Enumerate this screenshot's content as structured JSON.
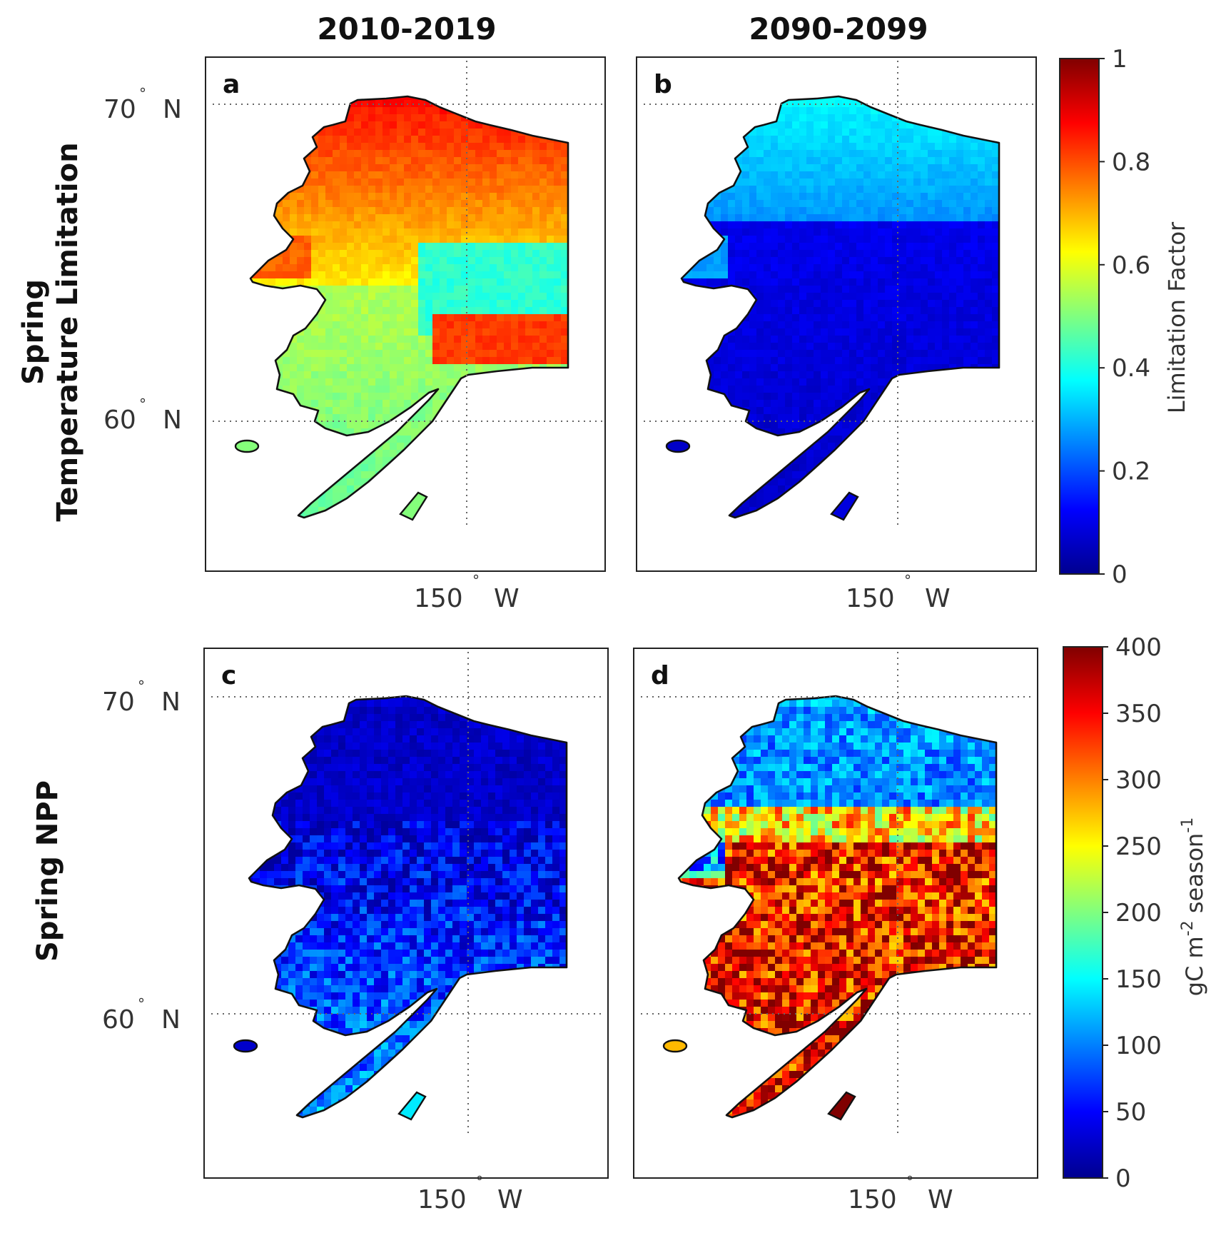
{
  "figure": {
    "column_titles": [
      "2010-2019",
      "2090-2099"
    ],
    "row_titles": [
      {
        "line1": "Spring",
        "line2": "Temperature Limitation"
      },
      {
        "line1": "Spring NPP",
        "line2": ""
      }
    ],
    "lat_label_70": {
      "num": "70",
      "deg": "°",
      "hemi": "N"
    },
    "lat_label_60": {
      "num": "60",
      "deg": "°",
      "hemi": "N"
    },
    "lon_label": {
      "num": "150",
      "deg": "°",
      "hemi": "W"
    }
  },
  "panels": [
    {
      "label": "a",
      "scheme": "warm_high"
    },
    {
      "label": "b",
      "scheme": "cool_low"
    },
    {
      "label": "c",
      "scheme": "npp_low"
    },
    {
      "label": "d",
      "scheme": "npp_high"
    }
  ],
  "colorbars": [
    {
      "label": "Limitation Factor",
      "ticks": [
        "0",
        "0.2",
        "0.4",
        "0.6",
        "0.8",
        "1"
      ],
      "min": 0,
      "max": 1
    },
    {
      "label": "gC m",
      "label_sup1": "-2",
      "label_mid": " season",
      "label_sup2": "-1",
      "ticks": [
        "0",
        "50",
        "100",
        "150",
        "200",
        "250",
        "300",
        "350",
        "400"
      ],
      "min": 0,
      "max": 400
    }
  ],
  "colormap": "jet",
  "colors": {
    "land_outline": "#111111",
    "frame": "#222222"
  }
}
